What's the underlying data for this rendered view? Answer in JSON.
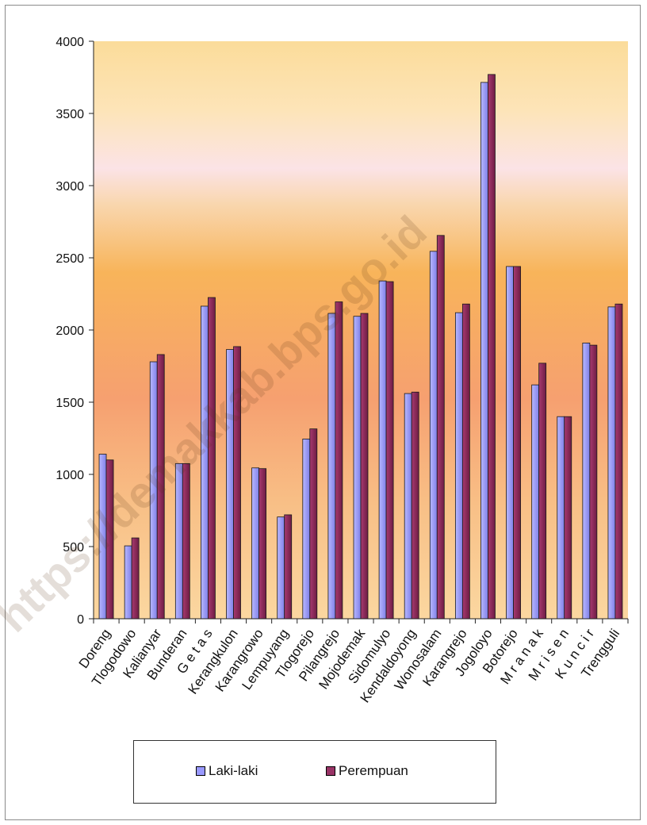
{
  "chart_data": {
    "type": "bar",
    "title": "",
    "xlabel": "",
    "ylabel": "",
    "ylim": [
      0,
      4000
    ],
    "yticks": [
      0,
      500,
      1000,
      1500,
      2000,
      2500,
      3000,
      3500,
      4000
    ],
    "grid": false,
    "legend_position": "bottom",
    "categories": [
      "Doreng",
      "Tlogodowo",
      "Kalianyar",
      "Bunderan",
      "G e t a s",
      "Kerangkulon",
      "Karangrowo",
      "Lempuyang",
      "Tlogorejo",
      "Pilangrejo",
      "Mojodemak",
      "Sidomulyo",
      "Kendaldoyong",
      "Wonosalam",
      "Karangrejo",
      "Jogoloyo",
      "Botorejo",
      "M r a n a k",
      "M r i s e n",
      "K u n c i r",
      "Trengguli"
    ],
    "series": [
      {
        "name": "Laki-laki",
        "color": "#9999ff",
        "values": [
          1140,
          505,
          1780,
          1075,
          2165,
          1865,
          1045,
          705,
          1245,
          2115,
          2095,
          2340,
          1560,
          2545,
          2120,
          3715,
          2440,
          1620,
          1400,
          1910,
          2160
        ]
      },
      {
        "name": "Perempuan",
        "color": "#993366",
        "values": [
          1100,
          560,
          1830,
          1075,
          2225,
          1885,
          1040,
          720,
          1315,
          2195,
          2115,
          2335,
          1570,
          2655,
          2180,
          3770,
          2440,
          1770,
          1400,
          1895,
          2180
        ]
      }
    ]
  },
  "watermark": "https://demakkab.bps.go.id"
}
